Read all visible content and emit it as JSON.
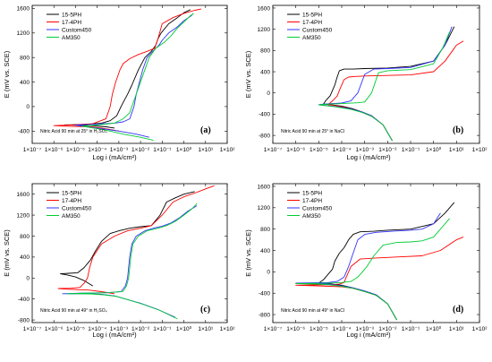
{
  "colors": {
    "15-5PH": "#000000",
    "17-4PH": "#ff0000",
    "Custom450": "#3333ff",
    "AM350": "#00cc33"
  },
  "chart_data": [
    {
      "type": "line",
      "panel_label": "(a)",
      "note": "Nitric Acid 90 min at 25° in H₂SO₄",
      "xlabel": "Log i (mA/cm²)",
      "ylabel": "E (mV vs. SCE)",
      "xscale": "log",
      "xlim": [
        -7,
        2
      ],
      "ylim": [
        -600,
        1650
      ],
      "xticks": [
        "1×10⁻⁷",
        "1×10⁻⁶",
        "1×10⁻⁵",
        "1×10⁻⁴",
        "1×10⁻³",
        "1×10⁻²",
        "1×10⁻¹",
        "1×10⁰",
        "1×10¹",
        "1×10²"
      ],
      "yticks": [
        "-400",
        "0",
        "400",
        "800",
        "1200",
        "1600"
      ],
      "legend": {
        "position": "top-left"
      },
      "series": [
        {
          "name": "15-5PH",
          "x": [
            -3.2,
            -3.6,
            -4.3,
            -5.2,
            -5.5,
            -4.5,
            -3.8,
            -3.4,
            -3.1,
            -2.9,
            -2.75,
            -2.6,
            -2.4,
            -2.1,
            -1.8,
            -1.5,
            -1.3,
            -1.2,
            -1.05,
            -0.7,
            -0.3,
            0.0,
            0.3
          ],
          "y": [
            -350,
            -330,
            -310,
            -300,
            -300,
            -290,
            -270,
            -230,
            -150,
            0,
            100,
            200,
            350,
            600,
            800,
            900,
            1000,
            1100,
            1200,
            1350,
            1450,
            1530,
            1580
          ]
        },
        {
          "name": "17-4PH",
          "x": [
            -3.0,
            -3.3,
            -3.8,
            -4.3,
            -5.5,
            -6.0,
            -5.2,
            -4.2,
            -3.6,
            -3.4,
            -3.3,
            -3.15,
            -2.95,
            -2.8,
            -2.5,
            -2.1,
            -1.7,
            -1.35,
            -1.2,
            -1.0,
            -0.5,
            0.0,
            0.5,
            0.8
          ],
          "y": [
            -400,
            -380,
            -350,
            -330,
            -320,
            -310,
            -300,
            -280,
            -200,
            0,
            200,
            400,
            600,
            700,
            780,
            850,
            900,
            950,
            1100,
            1350,
            1450,
            1520,
            1570,
            1590
          ]
        },
        {
          "name": "Custom450",
          "x": [
            -1.6,
            -2.2,
            -3.0,
            -3.8,
            -4.5,
            -5.0,
            -4.3,
            -3.2,
            -2.8,
            -2.5,
            -2.4,
            -2.3,
            -2.2,
            -2.05,
            -1.9,
            -1.7,
            -1.3,
            -1.15,
            -1.0,
            -0.7,
            -0.3,
            0.0,
            0.3,
            0.4
          ],
          "y": [
            -500,
            -450,
            -400,
            -360,
            -330,
            -300,
            -290,
            -270,
            -250,
            -200,
            -100,
            0,
            200,
            400,
            600,
            800,
            950,
            1000,
            1080,
            1200,
            1300,
            1400,
            1470,
            1500
          ]
        },
        {
          "name": "AM350",
          "x": [
            -1.4,
            -2.0,
            -2.8,
            -3.4,
            -4.0,
            -4.7,
            -4.0,
            -3.2,
            -2.8,
            -2.5,
            -2.3,
            -2.1,
            -1.9,
            -1.6,
            -1.3,
            -1.1,
            -0.9,
            -0.6,
            -0.3,
            0.0,
            0.3,
            0.45
          ],
          "y": [
            -550,
            -500,
            -450,
            -400,
            -360,
            -320,
            -300,
            -270,
            -200,
            -100,
            100,
            300,
            500,
            800,
            950,
            1000,
            1050,
            1150,
            1280,
            1380,
            1480,
            1520
          ]
        }
      ]
    },
    {
      "type": "line",
      "panel_label": "(b)",
      "note": "Nitric Acid 90 min at 25° in NaCl",
      "xlabel": "Log i (mA/cm²)",
      "ylabel": "E (mV vs. SCE)",
      "xscale": "log",
      "xlim": [
        -7,
        2
      ],
      "ylim": [
        -950,
        1650
      ],
      "xticks": [
        "1×10⁻⁷",
        "1×10⁻⁶",
        "1×10⁻⁵",
        "1×10⁻⁴",
        "1×10⁻³",
        "1×10⁻²",
        "1×10⁻¹",
        "1×10⁰",
        "1×10¹",
        "1×10²"
      ],
      "yticks": [
        "-800",
        "-400",
        "0",
        "400",
        "800",
        "1200",
        "1600"
      ],
      "legend": {
        "position": "top-left"
      },
      "series": [
        {
          "name": "15-5PH",
          "x": [
            -1.8,
            -2.2,
            -2.7,
            -3.1,
            -3.5,
            -4.0,
            -4.5,
            -4.8,
            -4.7,
            -4.5,
            -4.4,
            -4.3,
            -4.2,
            -4.1,
            -3.9,
            -3.5,
            -3.0,
            -2.0,
            -1.0,
            0.0,
            0.5,
            0.9
          ],
          "y": [
            -900,
            -600,
            -430,
            -360,
            -300,
            -250,
            -220,
            -210,
            -150,
            -50,
            50,
            150,
            300,
            420,
            450,
            450,
            460,
            470,
            500,
            600,
            900,
            1250
          ]
        },
        {
          "name": "17-4PH",
          "x": [
            -1.8,
            -2.2,
            -2.7,
            -3.1,
            -3.5,
            -4.0,
            -4.4,
            -4.6,
            -4.4,
            -4.2,
            -4.1,
            -4.0,
            -3.9,
            -3.7,
            -3.5,
            -3.0,
            -2.0,
            -1.0,
            0.0,
            0.5,
            1.0,
            1.3
          ],
          "y": [
            -900,
            -600,
            -440,
            -370,
            -310,
            -260,
            -230,
            -220,
            -150,
            -60,
            50,
            150,
            250,
            300,
            310,
            320,
            330,
            340,
            400,
            600,
            900,
            980
          ]
        },
        {
          "name": "Custom450",
          "x": [
            -1.8,
            -2.2,
            -2.7,
            -3.1,
            -3.6,
            -4.2,
            -4.8,
            -5.0,
            -4.8,
            -4.4,
            -4.0,
            -3.6,
            -3.3,
            -3.0,
            -2.6,
            -2.0,
            -1.0,
            0.0,
            0.5,
            0.8
          ],
          "y": [
            -900,
            -600,
            -430,
            -360,
            -300,
            -260,
            -230,
            -220,
            -210,
            -200,
            -190,
            -150,
            0,
            350,
            450,
            460,
            480,
            600,
            900,
            1250
          ]
        },
        {
          "name": "AM350",
          "x": [
            -1.8,
            -2.2,
            -2.7,
            -3.1,
            -3.6,
            -4.3,
            -4.8,
            -5.0,
            -4.8,
            -4.3,
            -3.8,
            -3.3,
            -3.0,
            -2.7,
            -2.4,
            -2.0,
            -1.0,
            0.0,
            0.4,
            0.7
          ],
          "y": [
            -900,
            -600,
            -440,
            -370,
            -310,
            -260,
            -235,
            -225,
            -215,
            -205,
            -195,
            -185,
            -170,
            0,
            380,
            420,
            440,
            550,
            850,
            1150
          ]
        }
      ]
    },
    {
      "type": "line",
      "panel_label": "(c)",
      "note": "Nitric Acid 90 min at 49° in H₂SO₄",
      "xlabel": "Log i (mA/cm²)",
      "ylabel": "E (mV vs. SCE)",
      "xscale": "log",
      "xlim": [
        -7,
        2
      ],
      "ylim": [
        -850,
        1800
      ],
      "xticks": [
        "1×10⁻⁷",
        "1×10⁻⁶",
        "1×10⁻⁵",
        "1×10⁻⁴",
        "1×10⁻³",
        "1×10⁻²",
        "1×10⁻¹",
        "1×10⁰",
        "1×10¹",
        "1×10²"
      ],
      "yticks": [
        "-800",
        "-400",
        "0",
        "400",
        "800",
        "1200",
        "1600"
      ],
      "legend": {
        "position": "top-left"
      },
      "series": [
        {
          "name": "15-5PH",
          "x": [
            -4.2,
            -4.6,
            -5.0,
            -5.4,
            -5.7,
            -5.3,
            -4.9,
            -4.6,
            -4.4,
            -4.3,
            -4.1,
            -3.8,
            -3.4,
            -3.0,
            -2.5,
            -2.0,
            -1.5,
            -1.1,
            -0.8,
            -0.4,
            0.0,
            0.5
          ],
          "y": [
            -150,
            -50,
            20,
            60,
            80,
            90,
            100,
            200,
            300,
            350,
            500,
            700,
            850,
            900,
            950,
            980,
            1000,
            1200,
            1450,
            1530,
            1600,
            1650
          ]
        },
        {
          "name": "17-4PH",
          "x": [
            -3.2,
            -3.8,
            -4.4,
            -5.0,
            -5.5,
            -5.8,
            -5.2,
            -4.8,
            -4.6,
            -4.45,
            -4.35,
            -4.2,
            -3.8,
            -3.2,
            -2.6,
            -2.0,
            -1.5,
            -1.0,
            -0.5,
            0.0,
            0.5,
            1.0,
            1.4
          ],
          "y": [
            -300,
            -260,
            -230,
            -220,
            -210,
            -200,
            -195,
            -180,
            -100,
            0,
            200,
            400,
            650,
            800,
            900,
            950,
            1000,
            1200,
            1450,
            1550,
            1620,
            1700,
            1760
          ]
        },
        {
          "name": "Custom450",
          "x": [
            -0.4,
            -1.2,
            -2.0,
            -2.7,
            -3.2,
            -3.8,
            -4.4,
            -5.0,
            -5.6,
            -4.8,
            -3.6,
            -2.9,
            -2.7,
            -2.6,
            -2.55,
            -2.5,
            -2.4,
            -2.2,
            -1.8,
            -1.4,
            -1.0,
            -0.6,
            -0.2,
            0.2,
            0.6
          ],
          "y": [
            -750,
            -600,
            -480,
            -400,
            -340,
            -310,
            -300,
            -300,
            -300,
            -290,
            -280,
            -260,
            -150,
            0,
            200,
            400,
            650,
            800,
            900,
            950,
            990,
            1050,
            1150,
            1280,
            1380
          ]
        },
        {
          "name": "AM350",
          "x": [
            -0.3,
            -1.1,
            -1.9,
            -2.6,
            -3.1,
            -3.7,
            -4.3,
            -4.9,
            -5.4,
            -4.6,
            -3.5,
            -2.8,
            -2.65,
            -2.55,
            -2.5,
            -2.45,
            -2.35,
            -2.1,
            -1.7,
            -1.2,
            -0.8,
            -0.4,
            0.0,
            0.4,
            0.6
          ],
          "y": [
            -780,
            -620,
            -500,
            -410,
            -350,
            -320,
            -305,
            -300,
            -300,
            -290,
            -280,
            -255,
            -150,
            0,
            200,
            400,
            650,
            800,
            900,
            950,
            1000,
            1080,
            1200,
            1330,
            1420
          ]
        }
      ]
    },
    {
      "type": "line",
      "panel_label": "(d)",
      "note": "Nitric Acid 90 min at 49° in NaCl",
      "xlabel": "Log i (mA/cm²)",
      "ylabel": "E (mV vs. SCE)",
      "xscale": "log",
      "xlim": [
        -7,
        2
      ],
      "ylim": [
        -950,
        1650
      ],
      "xticks": [
        "1×10⁻⁷",
        "1×10⁻⁶",
        "1×10⁻⁵",
        "1×10⁻⁴",
        "1×10⁻³",
        "1×10⁻²",
        "1×10⁻¹",
        "1×10⁰",
        "1×10¹",
        "1×10²"
      ],
      "yticks": [
        "-800",
        "-400",
        "0",
        "400",
        "800",
        "1200",
        "1600"
      ],
      "legend": {
        "position": "top-left"
      },
      "series": [
        {
          "name": "15-5PH",
          "x": [
            -1.6,
            -2.0,
            -2.5,
            -3.0,
            -3.5,
            -4.0,
            -4.6,
            -5.0,
            -4.8,
            -4.6,
            -4.4,
            -4.3,
            -4.1,
            -3.9,
            -3.7,
            -3.5,
            -3.2,
            -2.6,
            -2.0,
            -1.0,
            0.0,
            0.5,
            0.9
          ],
          "y": [
            -900,
            -600,
            -430,
            -360,
            -300,
            -250,
            -220,
            -210,
            -150,
            -50,
            50,
            200,
            350,
            450,
            600,
            700,
            750,
            760,
            780,
            800,
            900,
            1100,
            1300
          ]
        },
        {
          "name": "17-4PH",
          "x": [
            -1.6,
            -2.0,
            -2.5,
            -3.0,
            -3.5,
            -4.0,
            -4.5,
            -5.2,
            -6.0,
            -5.2,
            -4.5,
            -4.1,
            -3.9,
            -3.8,
            -3.6,
            -3.2,
            -2.5,
            -1.5,
            -0.5,
            0.3,
            1.0,
            1.3
          ],
          "y": [
            -900,
            -600,
            -440,
            -370,
            -310,
            -280,
            -270,
            -260,
            -250,
            -245,
            -240,
            -230,
            -200,
            -100,
            100,
            240,
            260,
            280,
            300,
            400,
            600,
            650
          ]
        },
        {
          "name": "Custom450",
          "x": [
            -1.6,
            -2.0,
            -2.5,
            -3.0,
            -3.5,
            -4.0,
            -4.6,
            -5.2,
            -6.0,
            -5.2,
            -4.6,
            -4.2,
            -3.9,
            -3.7,
            -3.5,
            -3.3,
            -3.0,
            -2.5,
            -1.8,
            -1.0,
            -0.5,
            0.0,
            0.3
          ],
          "y": [
            -900,
            -600,
            -430,
            -360,
            -300,
            -260,
            -230,
            -220,
            -210,
            -205,
            -200,
            -180,
            -100,
            100,
            350,
            600,
            700,
            740,
            760,
            780,
            800,
            900,
            1100
          ]
        },
        {
          "name": "AM350",
          "x": [
            -1.6,
            -2.0,
            -2.5,
            -3.0,
            -3.5,
            -4.0,
            -4.6,
            -5.2,
            -6.0,
            -5.2,
            -4.5,
            -4.0,
            -3.6,
            -3.3,
            -3.1,
            -2.9,
            -2.6,
            -2.2,
            -1.6,
            -1.0,
            -0.5,
            0.0,
            0.4,
            0.7
          ],
          "y": [
            -900,
            -600,
            -440,
            -370,
            -310,
            -270,
            -240,
            -230,
            -220,
            -215,
            -210,
            -200,
            -180,
            -100,
            0,
            100,
            300,
            500,
            550,
            560,
            580,
            650,
            850,
            1000
          ]
        }
      ]
    }
  ]
}
